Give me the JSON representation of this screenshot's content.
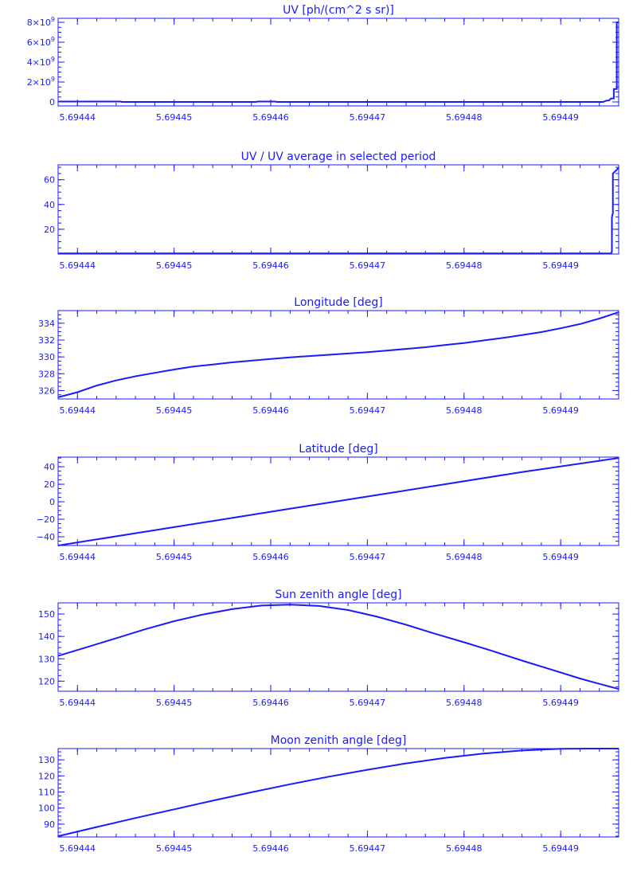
{
  "style": {
    "color": "#1a1aff",
    "background": "#ffffff"
  },
  "chart_data": [
    {
      "type": "line",
      "title": "UV [ph/(cm^2 s sr)]",
      "xlabel": "",
      "ylabel": "",
      "xlim": [
        5.694438,
        5.694496
      ],
      "ylim": [
        -400000000,
        8400000000
      ],
      "xticks": [
        5.69444,
        5.69445,
        5.69446,
        5.69447,
        5.69448,
        5.69449
      ],
      "xtick_labels": [
        "5.69444",
        "5.69445",
        "5.69446",
        "5.69447",
        "5.69448",
        "5.69449"
      ],
      "yticks": [
        0,
        2000000000,
        4000000000,
        6000000000,
        8000000000
      ],
      "ytick_labels": [
        {
          "base": "0",
          "exp": ""
        },
        {
          "base": "2×10",
          "exp": "9"
        },
        {
          "base": "4×10",
          "exp": "9"
        },
        {
          "base": "6×10",
          "exp": "9"
        },
        {
          "base": "8×10",
          "exp": "9"
        }
      ],
      "grid": false,
      "series": [
        {
          "x": [
            5.694438,
            5.6944445,
            5.6944446,
            5.6944585,
            5.6944586,
            5.6944605,
            5.6944606,
            5.6944944,
            5.6944947,
            5.694495,
            5.6944952,
            5.6944955,
            5.6944955,
            5.6944958,
            5.6944958,
            5.694496
          ],
          "y": [
            40000000,
            40000000,
            0,
            0,
            40000000,
            40000000,
            0,
            0,
            120000000,
            150000000,
            350000000,
            350000000,
            1300000000,
            1300000000,
            8000000000,
            8000000000
          ]
        }
      ]
    },
    {
      "type": "line",
      "title": "UV / UV average in selected period",
      "xlabel": "",
      "ylabel": "",
      "xlim": [
        5.694438,
        5.694496
      ],
      "ylim": [
        0,
        72
      ],
      "xticks": [
        5.69444,
        5.69445,
        5.69446,
        5.69447,
        5.69448,
        5.69449
      ],
      "xtick_labels": [
        "5.69444",
        "5.69445",
        "5.69446",
        "5.69447",
        "5.69448",
        "5.69449"
      ],
      "yticks": [
        20,
        40,
        60
      ],
      "ytick_labels": [
        {
          "base": "20",
          "exp": ""
        },
        {
          "base": "40",
          "exp": ""
        },
        {
          "base": "60",
          "exp": ""
        }
      ],
      "grid": false,
      "series": [
        {
          "x": [
            5.694438,
            5.6944952,
            5.6944953,
            5.6944953,
            5.6944954,
            5.6944954,
            5.6944958,
            5.694496
          ],
          "y": [
            0.5,
            0.5,
            2,
            30,
            33,
            65,
            68,
            70
          ]
        }
      ]
    },
    {
      "type": "line",
      "title": "Longitude [deg]",
      "xlabel": "",
      "ylabel": "",
      "xlim": [
        5.694438,
        5.694496
      ],
      "ylim": [
        325,
        335.5
      ],
      "xticks": [
        5.69444,
        5.69445,
        5.69446,
        5.69447,
        5.69448,
        5.69449
      ],
      "xtick_labels": [
        "5.69444",
        "5.69445",
        "5.69446",
        "5.69447",
        "5.69448",
        "5.69449"
      ],
      "yticks": [
        326,
        328,
        330,
        332,
        334
      ],
      "ytick_labels": [
        {
          "base": "326",
          "exp": ""
        },
        {
          "base": "328",
          "exp": ""
        },
        {
          "base": "330",
          "exp": ""
        },
        {
          "base": "332",
          "exp": ""
        },
        {
          "base": "334",
          "exp": ""
        }
      ],
      "grid": false,
      "series": [
        {
          "x": [
            5.694438,
            5.69444,
            5.694442,
            5.694444,
            5.694446,
            5.694448,
            5.69445,
            5.694452,
            5.694454,
            5.694456,
            5.694458,
            5.69446,
            5.694462,
            5.694464,
            5.694466,
            5.694468,
            5.69447,
            5.694472,
            5.694474,
            5.694476,
            5.694478,
            5.69448,
            5.694482,
            5.694484,
            5.694486,
            5.694488,
            5.69449,
            5.694492,
            5.694494,
            5.694496
          ],
          "y": [
            325.2,
            325.8,
            326.6,
            327.2,
            327.7,
            328.1,
            328.5,
            328.85,
            329.1,
            329.35,
            329.55,
            329.75,
            329.95,
            330.1,
            330.25,
            330.4,
            330.55,
            330.75,
            330.95,
            331.15,
            331.4,
            331.65,
            331.95,
            332.25,
            332.6,
            332.95,
            333.4,
            333.9,
            334.55,
            335.3
          ]
        }
      ]
    },
    {
      "type": "line",
      "title": "Latitude [deg]",
      "xlabel": "",
      "ylabel": "",
      "xlim": [
        5.694438,
        5.694496
      ],
      "ylim": [
        -50,
        51
      ],
      "xticks": [
        5.69444,
        5.69445,
        5.69446,
        5.69447,
        5.69448,
        5.69449
      ],
      "xtick_labels": [
        "5.69444",
        "5.69445",
        "5.69446",
        "5.69447",
        "5.69448",
        "5.69449"
      ],
      "yticks": [
        -40,
        -20,
        0,
        20,
        40
      ],
      "ytick_labels": [
        {
          "base": "−40",
          "exp": ""
        },
        {
          "base": "−20",
          "exp": ""
        },
        {
          "base": "0",
          "exp": ""
        },
        {
          "base": "20",
          "exp": ""
        },
        {
          "base": "40",
          "exp": ""
        }
      ],
      "grid": false,
      "series": [
        {
          "x": [
            5.694438,
            5.694446,
            5.694454,
            5.694462,
            5.69447,
            5.694478,
            5.694486,
            5.694496
          ],
          "y": [
            -50,
            -36,
            -22,
            -8,
            6,
            20,
            34,
            50
          ]
        }
      ]
    },
    {
      "type": "line",
      "title": "Sun zenith angle [deg]",
      "xlabel": "",
      "ylabel": "",
      "xlim": [
        5.694438,
        5.694496
      ],
      "ylim": [
        115.5,
        155
      ],
      "xticks": [
        5.69444,
        5.69445,
        5.69446,
        5.69447,
        5.69448,
        5.69449
      ],
      "xtick_labels": [
        "5.69444",
        "5.69445",
        "5.69446",
        "5.69447",
        "5.69448",
        "5.69449"
      ],
      "yticks": [
        120,
        130,
        140,
        150
      ],
      "ytick_labels": [
        {
          "base": "120",
          "exp": ""
        },
        {
          "base": "130",
          "exp": ""
        },
        {
          "base": "140",
          "exp": ""
        },
        {
          "base": "150",
          "exp": ""
        }
      ],
      "grid": false,
      "series": [
        {
          "x": [
            5.694438,
            5.694441,
            5.694444,
            5.694447,
            5.69445,
            5.694453,
            5.694456,
            5.694459,
            5.694462,
            5.694465,
            5.694468,
            5.694471,
            5.694474,
            5.694477,
            5.69448,
            5.694483,
            5.694486,
            5.694489,
            5.694492,
            5.694494,
            5.694496
          ],
          "y": [
            131.3,
            135.2,
            139.2,
            143.2,
            146.8,
            149.8,
            152.2,
            153.8,
            154.2,
            153.6,
            151.8,
            148.8,
            145.2,
            141.2,
            137.4,
            133.4,
            129.2,
            125.2,
            121.2,
            118.8,
            116.5
          ]
        }
      ]
    },
    {
      "type": "line",
      "title": "Moon zenith angle [deg]",
      "xlabel": "",
      "ylabel": "",
      "xlim": [
        5.694438,
        5.694496
      ],
      "ylim": [
        82,
        137
      ],
      "xticks": [
        5.69444,
        5.69445,
        5.69446,
        5.69447,
        5.69448,
        5.69449
      ],
      "xtick_labels": [
        "5.69444",
        "5.69445",
        "5.69446",
        "5.69447",
        "5.69448",
        "5.69449"
      ],
      "yticks": [
        90,
        100,
        110,
        120,
        130
      ],
      "ytick_labels": [
        {
          "base": "90",
          "exp": ""
        },
        {
          "base": "100",
          "exp": ""
        },
        {
          "base": "110",
          "exp": ""
        },
        {
          "base": "120",
          "exp": ""
        },
        {
          "base": "130",
          "exp": ""
        }
      ],
      "grid": false,
      "series": [
        {
          "x": [
            5.694438,
            5.694442,
            5.694446,
            5.69445,
            5.694454,
            5.694458,
            5.694462,
            5.694466,
            5.69447,
            5.694474,
            5.694478,
            5.694482,
            5.694486,
            5.69449,
            5.694493,
            5.694496
          ],
          "y": [
            82.5,
            88.2,
            93.8,
            99.2,
            104.6,
            109.8,
            114.8,
            119.5,
            123.8,
            127.8,
            131.2,
            133.9,
            135.8,
            136.9,
            137.0,
            137.0
          ]
        }
      ]
    }
  ]
}
